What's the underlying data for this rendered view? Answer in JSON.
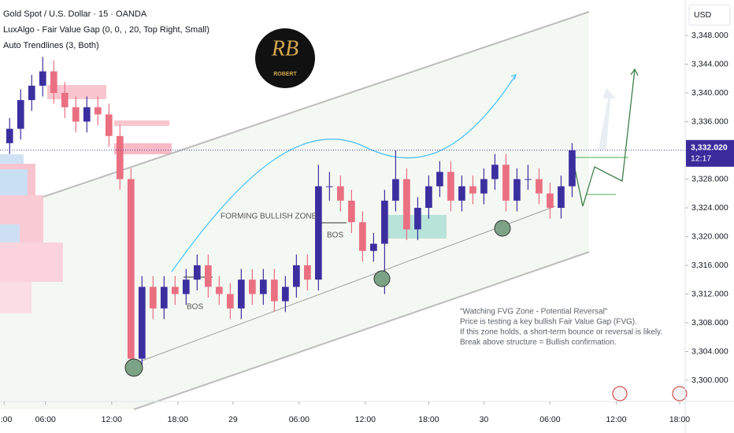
{
  "chart_data": {
    "type": "candlestick",
    "title": "Gold Spot / U.S. Dollar · 15 · OANDA",
    "indicators": [
      "LuxAlgo - Fair Value Gap (0, 0, , 20, Top Right, Small)",
      "Auto Trendlines (3, Both)"
    ],
    "currency": "USD",
    "logo": {
      "initials": "RB",
      "name": "ROBERT"
    },
    "annotations": [
      "FORMING BULLISH ZONE",
      "BOS",
      "BOS"
    ],
    "note": [
      "\"Watching FVG Zone - Potential Reversal\"",
      "Price is testing a key bullish Fair Value Gap (FVG).",
      "If this zone holds, a short-term bounce or reversal is likely.",
      "Break above structure = Bullish confirmation."
    ],
    "x": [
      2,
      6,
      10,
      14,
      18,
      22,
      26,
      30,
      34,
      38,
      42,
      46,
      50,
      54,
      58,
      62,
      66,
      70,
      74,
      78,
      82,
      86,
      90,
      94,
      98,
      102,
      106,
      110,
      114,
      118,
      122,
      126,
      130,
      134,
      138,
      142,
      146,
      150,
      154,
      158,
      162,
      166,
      170,
      174,
      178,
      182,
      186,
      190,
      194,
      198,
      202,
      206
    ],
    "open": [
      3333,
      3335,
      3339,
      3341,
      3343,
      3340,
      3338,
      3336,
      3338,
      3337,
      3334,
      3328,
      3303,
      3313,
      3310,
      3313,
      3312,
      3314,
      3316,
      3313,
      3312,
      3310,
      3314,
      3312,
      3314,
      3311,
      3313,
      3316,
      3314,
      3327,
      3327,
      3325,
      3322,
      3318,
      3319,
      3325,
      3328,
      3321,
      3324,
      3327,
      3329,
      3325,
      3327,
      3326,
      3328,
      3330,
      3325,
      3328,
      3328,
      3326,
      3324,
      3327
    ],
    "high": [
      3336.5,
      3340.5,
      3342.5,
      3345,
      3344.5,
      3341.5,
      3339.5,
      3339.5,
      3339.5,
      3338.5,
      3335.5,
      3329.5,
      3314.5,
      3314.5,
      3314.5,
      3314.5,
      3315.5,
      3317.5,
      3317.5,
      3314.5,
      3313.5,
      3315.5,
      3315.5,
      3315.5,
      3315.5,
      3314.5,
      3317.5,
      3317.5,
      3330,
      3329,
      3328.5,
      3326.5,
      3323.5,
      3320.5,
      3326.5,
      3332,
      3329.5,
      3325.5,
      3328.5,
      3330.5,
      3330.5,
      3328.5,
      3328.5,
      3329.5,
      3331.5,
      3331.5,
      3329.5,
      3330,
      3329.5,
      3327.5,
      3328.5,
      3333
    ],
    "low": [
      3331.5,
      3333.5,
      3337.5,
      3339.5,
      3338.5,
      3336.5,
      3334.5,
      3334.5,
      3335.5,
      3332.5,
      3326.5,
      3301,
      3301.5,
      3308.5,
      3308.5,
      3310.5,
      3310.5,
      3312.5,
      3311.5,
      3310.5,
      3308.5,
      3308.5,
      3310.5,
      3310.5,
      3309.5,
      3309.5,
      3311.5,
      3312.5,
      3312.5,
      3325,
      3323.5,
      3320.5,
      3316.5,
      3316.5,
      3312,
      3323.5,
      3319.5,
      3319.5,
      3322.5,
      3325.5,
      3323.5,
      3323.5,
      3324.5,
      3324.5,
      3326.5,
      3323.5,
      3323.5,
      3326.5,
      3324.5,
      3322.5,
      3322.5,
      3325.5
    ],
    "close": [
      3335,
      3339,
      3341,
      3343,
      3340,
      3338,
      3336,
      3338,
      3337,
      3334,
      3328,
      3303,
      3313,
      3310,
      3313,
      3312,
      3314,
      3316,
      3313,
      3312,
      3310,
      3314,
      3312,
      3314,
      3311,
      3313,
      3316,
      3314,
      3327,
      3327,
      3325,
      3322,
      3318,
      3319,
      3325,
      3328,
      3321,
      3324,
      3327,
      3329,
      3325,
      3327,
      3326,
      3328,
      3330,
      3325,
      3328,
      3328,
      3326,
      3324,
      3327,
      3332.02
    ],
    "last_price_label": "3,332.020",
    "countdown": "12:17",
    "up_color": "#3b2fa0",
    "down_color": "#ea6f81",
    "xlim": [
      -1.5,
      247
    ],
    "xticks": [
      {
        "value": 0,
        "label": ":00"
      },
      {
        "value": 15,
        "label": "06:00"
      },
      {
        "value": 39,
        "label": "12:00"
      },
      {
        "value": 63,
        "label": "18:00"
      },
      {
        "value": 83,
        "label": "29"
      },
      {
        "value": 107,
        "label": "06:00"
      },
      {
        "value": 131,
        "label": "12:00"
      },
      {
        "value": 154,
        "label": "18:00"
      },
      {
        "value": 174,
        "label": "30"
      },
      {
        "value": 198,
        "label": "06:00"
      },
      {
        "value": 222,
        "label": "12:00"
      },
      {
        "value": 245,
        "label": "18:00"
      }
    ],
    "ylim": [
      3297.04,
      3352.93
    ],
    "yticks": [
      {
        "value": 3348,
        "label": "3,348.000"
      },
      {
        "value": 3344,
        "label": "3,344.000"
      },
      {
        "value": 3340,
        "label": "3,340.000"
      },
      {
        "value": 3336,
        "label": "3,336.000"
      },
      {
        "value": 3332,
        "label": "3,332.000"
      },
      {
        "value": 3328,
        "label": "3,328.000"
      },
      {
        "value": 3324,
        "label": "3,324.000"
      },
      {
        "value": 3320,
        "label": "3,320.000"
      },
      {
        "value": 3316,
        "label": "3,316.000"
      },
      {
        "value": 3312,
        "label": "3,312.000"
      },
      {
        "value": 3308,
        "label": "3,308.000"
      },
      {
        "value": 3304,
        "label": "3,304.000"
      },
      {
        "value": 3300,
        "label": "3,300.000"
      }
    ]
  }
}
